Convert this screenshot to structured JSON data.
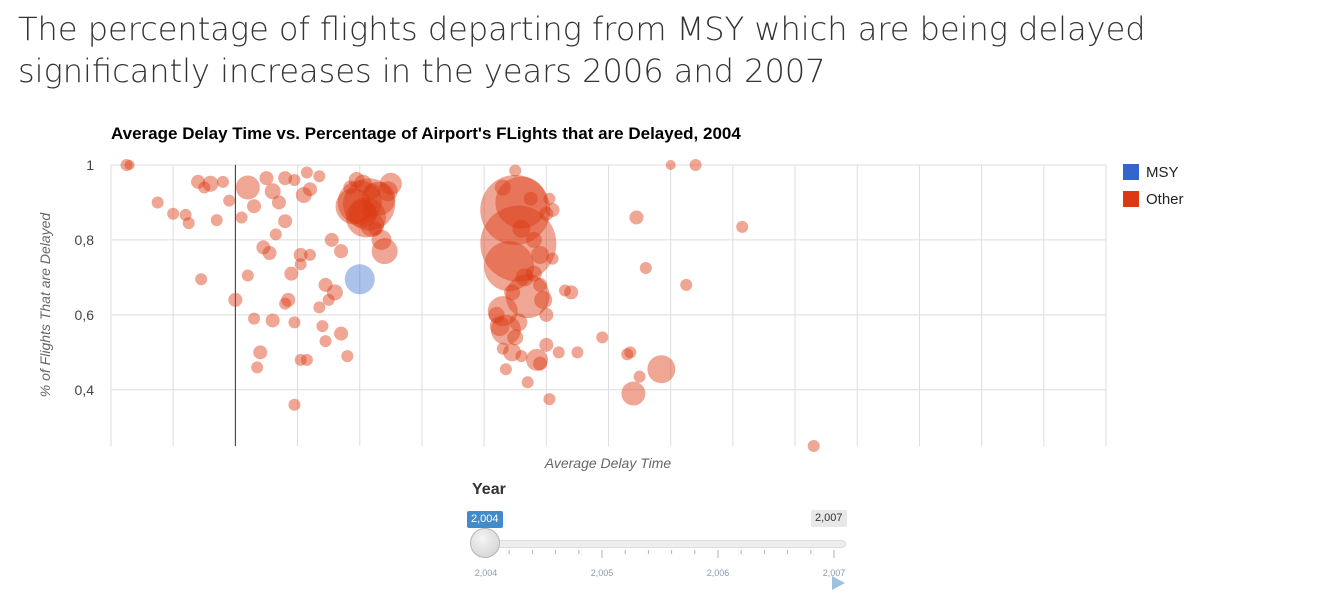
{
  "headline": "The percentage of flights departing from MSY which are being delayed significantly increases in the years 2006 and 2007",
  "chart_data": {
    "type": "scatter",
    "title": "Average Delay Time vs. Percentage of Airport's FLights that are Delayed, 2004",
    "xlabel": "Average Delay Time",
    "ylabel": "% of Flights That are Delayed",
    "ylim": [
      0.25,
      1.0
    ],
    "yticks": [
      {
        "value": 1.0,
        "label": "1"
      },
      {
        "value": 0.8,
        "label": "0,8"
      },
      {
        "value": 0.6,
        "label": "0,6"
      },
      {
        "value": 0.4,
        "label": "0,4"
      }
    ],
    "xlim": [
      0,
      16
    ],
    "x_tick_labels_shown": false,
    "grid": true,
    "legend_position": "right",
    "series": [
      {
        "name": "MSY",
        "color": "#3366cc",
        "points": [
          [
            4,
            0.695,
            15
          ]
        ]
      },
      {
        "name": "Other",
        "color": "#dc3912",
        "points": [
          [
            0.25,
            1.0,
            6
          ],
          [
            0.3,
            1.0,
            5
          ],
          [
            0.75,
            0.9,
            6
          ],
          [
            1.0,
            0.87,
            6
          ],
          [
            1.2,
            0.867,
            6
          ],
          [
            1.25,
            0.845,
            6
          ],
          [
            1.4,
            0.955,
            7
          ],
          [
            1.5,
            0.94,
            6
          ],
          [
            1.6,
            0.95,
            8
          ],
          [
            1.7,
            0.853,
            6
          ],
          [
            1.8,
            0.955,
            6
          ],
          [
            1.9,
            0.905,
            6
          ],
          [
            2.1,
            0.86,
            6
          ],
          [
            2.2,
            0.94,
            12
          ],
          [
            2.3,
            0.89,
            7
          ],
          [
            2.5,
            0.965,
            7
          ],
          [
            2.6,
            0.93,
            8
          ],
          [
            2.7,
            0.9,
            7
          ],
          [
            2.8,
            0.965,
            7
          ],
          [
            2.95,
            0.96,
            6
          ],
          [
            3.15,
            0.98,
            6
          ],
          [
            3.35,
            0.97,
            6
          ],
          [
            3.1,
            0.92,
            8
          ],
          [
            3.2,
            0.935,
            7
          ],
          [
            1.45,
            0.695,
            6
          ],
          [
            2.0,
            0.64,
            7
          ],
          [
            2.2,
            0.705,
            6
          ],
          [
            2.3,
            0.59,
            6
          ],
          [
            2.4,
            0.5,
            7
          ],
          [
            2.35,
            0.46,
            6
          ],
          [
            2.45,
            0.78,
            7
          ],
          [
            2.55,
            0.765,
            7
          ],
          [
            2.6,
            0.585,
            7
          ],
          [
            2.65,
            0.815,
            6
          ],
          [
            2.8,
            0.85,
            7
          ],
          [
            2.8,
            0.63,
            6
          ],
          [
            2.85,
            0.64,
            7
          ],
          [
            2.9,
            0.71,
            7
          ],
          [
            2.95,
            0.58,
            6
          ],
          [
            3.05,
            0.76,
            7
          ],
          [
            3.05,
            0.735,
            6
          ],
          [
            3.05,
            0.48,
            6
          ],
          [
            3.15,
            0.48,
            6
          ],
          [
            3.2,
            0.76,
            6
          ],
          [
            3.35,
            0.62,
            6
          ],
          [
            3.4,
            0.57,
            6
          ],
          [
            3.45,
            0.68,
            7
          ],
          [
            3.5,
            0.64,
            6
          ],
          [
            3.45,
            0.53,
            6
          ],
          [
            3.55,
            0.8,
            7
          ],
          [
            3.6,
            0.66,
            8
          ],
          [
            3.7,
            0.55,
            7
          ],
          [
            3.8,
            0.49,
            6
          ],
          [
            3.7,
            0.77,
            7
          ],
          [
            2.95,
            0.36,
            6
          ],
          [
            3.9,
            0.89,
            18
          ],
          [
            4.0,
            0.9,
            22
          ],
          [
            4.05,
            0.87,
            14
          ],
          [
            4.1,
            0.86,
            20
          ],
          [
            4.15,
            0.895,
            26
          ],
          [
            4.2,
            0.84,
            12
          ],
          [
            4.3,
            0.91,
            17
          ],
          [
            4.35,
            0.8,
            10
          ],
          [
            4.4,
            0.77,
            13
          ],
          [
            4.45,
            0.93,
            10
          ],
          [
            4.5,
            0.95,
            11
          ],
          [
            3.85,
            0.94,
            7
          ],
          [
            3.95,
            0.96,
            8
          ],
          [
            4.05,
            0.95,
            9
          ],
          [
            4.15,
            0.88,
            7
          ],
          [
            4.2,
            0.93,
            8
          ],
          [
            4.25,
            0.83,
            7
          ],
          [
            6.5,
            0.88,
            35
          ],
          [
            6.55,
            0.79,
            38
          ],
          [
            6.6,
            0.9,
            26
          ],
          [
            6.4,
            0.73,
            25
          ],
          [
            6.7,
            0.65,
            22
          ],
          [
            6.3,
            0.61,
            15
          ],
          [
            6.35,
            0.56,
            15
          ],
          [
            6.25,
            0.57,
            10
          ],
          [
            6.45,
            0.5,
            9
          ],
          [
            6.5,
            0.54,
            8
          ],
          [
            6.6,
            0.83,
            9
          ],
          [
            6.8,
            0.71,
            8
          ],
          [
            6.9,
            0.76,
            9
          ],
          [
            6.3,
            0.94,
            8
          ],
          [
            6.5,
            0.985,
            6
          ],
          [
            6.75,
            0.91,
            7
          ],
          [
            7.0,
            0.87,
            7
          ],
          [
            7.05,
            0.91,
            6
          ],
          [
            7.1,
            0.88,
            7
          ],
          [
            6.9,
            0.68,
            7
          ],
          [
            7.1,
            0.75,
            6
          ],
          [
            6.95,
            0.64,
            9
          ],
          [
            7.0,
            0.6,
            7
          ],
          [
            6.85,
            0.48,
            11
          ],
          [
            6.9,
            0.47,
            7
          ],
          [
            7.0,
            0.52,
            7
          ],
          [
            7.2,
            0.5,
            6
          ],
          [
            7.3,
            0.665,
            6
          ],
          [
            7.5,
            0.5,
            6
          ],
          [
            7.4,
            0.66,
            7
          ],
          [
            7.05,
            0.375,
            6
          ],
          [
            6.3,
            0.51,
            6
          ],
          [
            6.35,
            0.455,
            6
          ],
          [
            6.6,
            0.49,
            6
          ],
          [
            6.7,
            0.42,
            6
          ],
          [
            6.2,
            0.6,
            8
          ],
          [
            6.55,
            0.58,
            9
          ],
          [
            6.45,
            0.66,
            8
          ],
          [
            6.65,
            0.7,
            9
          ],
          [
            6.8,
            0.8,
            8
          ],
          [
            8.3,
            0.495,
            6
          ],
          [
            8.35,
            0.5,
            6
          ],
          [
            8.5,
            0.435,
            6
          ],
          [
            8.6,
            0.725,
            6
          ],
          [
            8.4,
            0.39,
            12
          ],
          [
            8.85,
            0.455,
            14
          ],
          [
            7.9,
            0.54,
            6
          ],
          [
            9.25,
            0.68,
            6
          ],
          [
            10.15,
            0.835,
            6
          ],
          [
            8.45,
            0.86,
            7
          ],
          [
            9.0,
            1.0,
            5
          ],
          [
            9.4,
            1.0,
            6
          ],
          [
            11.3,
            0.25,
            6
          ]
        ]
      }
    ]
  },
  "legend": [
    {
      "name": "MSY",
      "color": "#3366cc"
    },
    {
      "name": "Other",
      "color": "#dc3912"
    }
  ],
  "slider": {
    "title": "Year",
    "current_label": "2,004",
    "max_label": "2,007",
    "min": 2004,
    "max": 2007,
    "value": 2004,
    "tick_labels": [
      "2,004",
      "2,005",
      "2,006",
      "2,007"
    ]
  }
}
